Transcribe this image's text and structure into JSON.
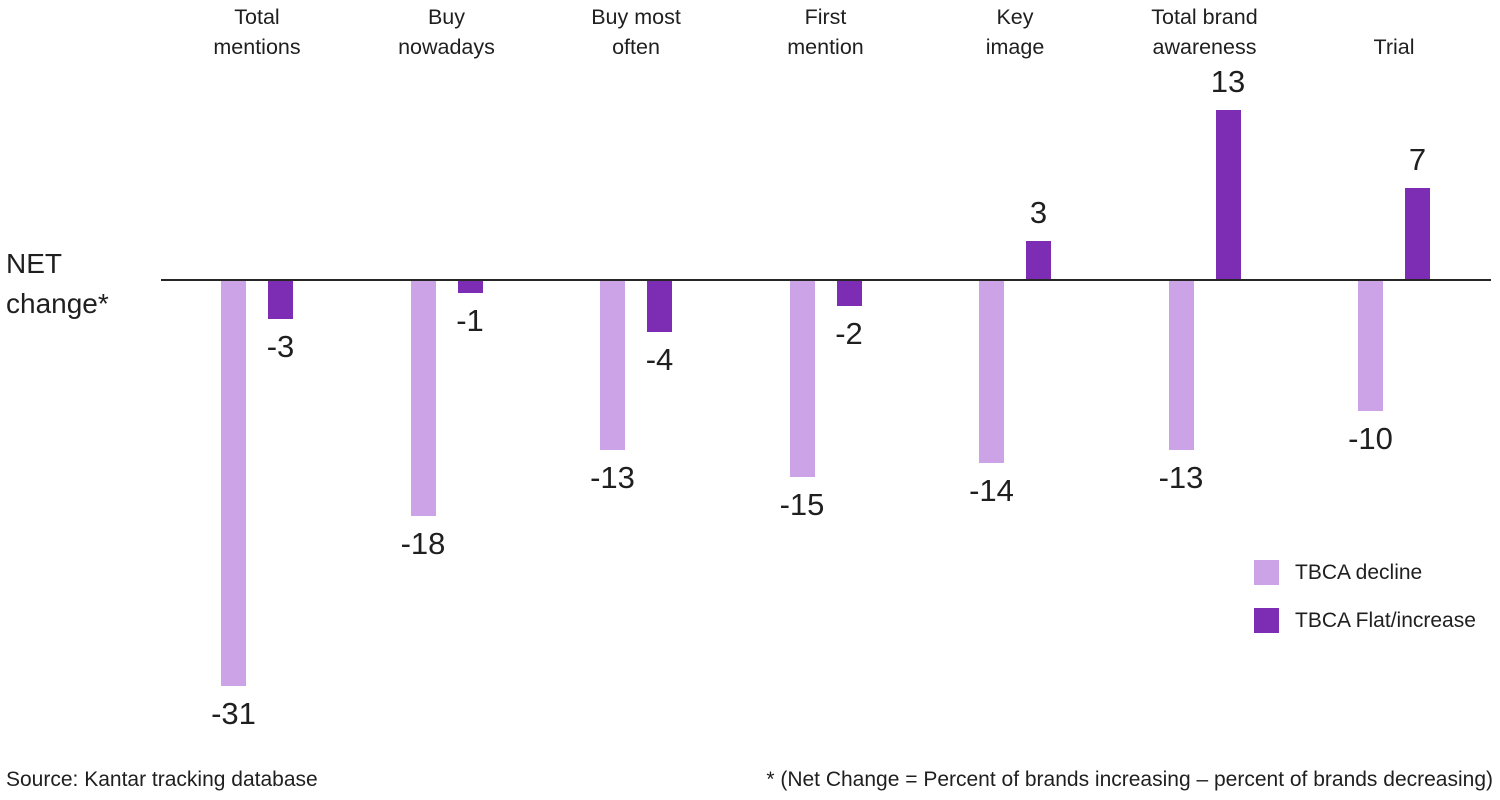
{
  "axis_label": "NET change*",
  "chart_data": {
    "type": "bar",
    "title": "",
    "ylabel": "NET change*",
    "categories": [
      "Total mentions",
      "Buy nowadays",
      "Buy most often",
      "First mention",
      "Key image",
      "Total brand awareness",
      "Trial"
    ],
    "category_label_lines": [
      [
        "Total",
        "mentions"
      ],
      [
        "Buy",
        "nowadays"
      ],
      [
        "Buy most",
        "often"
      ],
      [
        "First",
        "mention"
      ],
      [
        "Key",
        "image"
      ],
      [
        "Total brand",
        "awareness"
      ],
      [
        "Trial"
      ]
    ],
    "series": [
      {
        "name": "TBCA decline",
        "color": "#cba3e6",
        "values": [
          -31,
          -18,
          -13,
          -15,
          -14,
          -13,
          -10
        ]
      },
      {
        "name": "TBCA Flat/increase",
        "color": "#7c2db4",
        "values": [
          -3,
          -1,
          -4,
          -2,
          3,
          13,
          7
        ]
      }
    ],
    "ylim": [
      -35,
      16
    ],
    "grid": false,
    "value_labels": true,
    "legend_position": "bottom-right"
  },
  "legend": {
    "items": [
      {
        "label": "TBCA decline",
        "color": "#cba3e6"
      },
      {
        "label": "TBCA Flat/increase",
        "color": "#7c2db4"
      }
    ]
  },
  "footer": {
    "source": "Source: Kantar tracking database",
    "footnote": "* (Net Change = Percent of brands increasing – percent of brands decreasing)"
  },
  "colors": {
    "decline_bar": "#cba3e6",
    "flat_increase_bar": "#7c2db4",
    "axis_line": "#262626",
    "text": "#1f1f1f",
    "background": "#ffffff"
  }
}
